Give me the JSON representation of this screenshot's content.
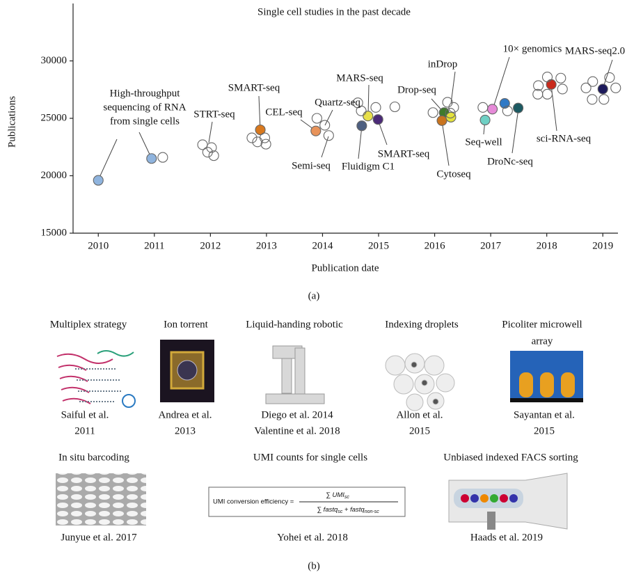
{
  "chart_data": {
    "type": "scatter",
    "title": "Single cell studies in the past decade",
    "xlabel": "Publication date",
    "ylabel": "Publications",
    "xlim": [
      2009.55,
      2019.27
    ],
    "ylim": [
      15000,
      35000
    ],
    "xticks": [
      2010,
      2011,
      2012,
      2013,
      2014,
      2015,
      2016,
      2017,
      2018,
      2019
    ],
    "yticks": [
      15000,
      20000,
      25000,
      30000
    ],
    "series": [
      {
        "x": [
          2010.0,
          2010.95,
          2012.89,
          2013.88,
          2014.7,
          2014.81,
          2014.99,
          2016.17,
          2016.13,
          2016.29,
          2016.9,
          2017.03,
          2017.25,
          2017.49,
          2018.08,
          2019.0
        ],
        "values": [
          19600,
          21500,
          24000,
          23900,
          24350,
          25200,
          24900,
          25500,
          24800,
          25100,
          24850,
          25800,
          26300,
          25900,
          27950,
          27550
        ],
        "colors": [
          "#8fb4de",
          "#8fb4de",
          "#d9791e",
          "#e8935a",
          "#4d5f80",
          "#e8e04a",
          "#4b2a78",
          "#3f7a2b",
          "#c9741f",
          "#e4e23c",
          "#6fd0c4",
          "#e68ad8",
          "#2f79c6",
          "#1c5a62",
          "#c92a1c",
          "#1d1a5c"
        ]
      },
      {
        "color": "none",
        "x": [
          2011.15,
          2011.86,
          2012.02,
          2011.95,
          2012.06,
          2012.74,
          2012.84,
          2012.99,
          2012.97,
          2013.9,
          2014.04,
          2014.11,
          2014.63,
          2014.69,
          2014.95,
          2015.29,
          2015.97,
          2016.23,
          2016.34,
          2016.28,
          2016.86,
          2017.3,
          2017.85,
          2018.01,
          2017.84,
          2018.01,
          2018.28,
          2018.25,
          2018.7,
          2018.82,
          2018.81,
          2019.02,
          2019.12,
          2019.23
        ],
        "values": [
          21600,
          22700,
          22450,
          22050,
          21750,
          23300,
          22950,
          22750,
          23300,
          25000,
          24400,
          23500,
          26350,
          25650,
          25950,
          26000,
          25500,
          26400,
          25950,
          25450,
          25950,
          25650,
          27850,
          28600,
          27100,
          27100,
          27550,
          28500,
          27650,
          28200,
          26650,
          26650,
          28550,
          27650
        ]
      }
    ],
    "annotations": [
      [
        "High-throughput",
        "sequencing of RNA",
        "from single cells"
      ],
      [
        "STRT-seq"
      ],
      [
        "SMART-seq"
      ],
      [
        "CEL-seq"
      ],
      [
        "Quartz-seq"
      ],
      [
        "Semi-seq"
      ],
      [
        "MARS-seq"
      ],
      [
        "Fluidigm C1"
      ],
      [
        "SMART-seq"
      ],
      [
        "Drop-seq"
      ],
      [
        "inDrop"
      ],
      [
        "Cytoseq"
      ],
      [
        "Seq-well"
      ],
      [
        "10× genomics"
      ],
      [
        "DroNc-seq"
      ],
      [
        "sci-RNA-seq"
      ],
      [
        "MARS-seq2.0"
      ]
    ]
  },
  "panel_a_label": "(a)",
  "panel_b": {
    "label": "(b)",
    "items": [
      {
        "title": [
          "Multiplex strategy"
        ],
        "caption": [
          "Saiful et al.",
          "2011"
        ]
      },
      {
        "title": [
          "Ion torrent"
        ],
        "caption": [
          "Andrea et al.",
          "2013"
        ]
      },
      {
        "title": [
          "Liquid-handing robotic"
        ],
        "caption": [
          "Diego et al. 2014",
          "Valentine et al. 2018"
        ]
      },
      {
        "title": [
          "Indexing droplets"
        ],
        "caption": [
          "Allon et al.",
          "2015"
        ]
      },
      {
        "title": [
          "Picoliter microwell",
          "array"
        ],
        "caption": [
          "Sayantan et al.",
          "2015"
        ]
      },
      {
        "title": [
          "In situ barcoding"
        ],
        "caption": [
          "Junyue et al. 2017"
        ]
      },
      {
        "title": [
          "UMI counts for single cells"
        ],
        "caption": [
          "Yohei et al. 2018"
        ]
      },
      {
        "title": [
          "Unbiased indexed FACS sorting"
        ],
        "caption": [
          "Haads et al. 2019"
        ]
      }
    ],
    "formula": {
      "lhs": "UMI conversion efficiency =",
      "num": "∑ UMI",
      "num_sub": "sc",
      "den1": "∑ fastq",
      "den1_sub": "sc",
      "den2": " + fastq",
      "den2_sub": "non-sc"
    }
  }
}
